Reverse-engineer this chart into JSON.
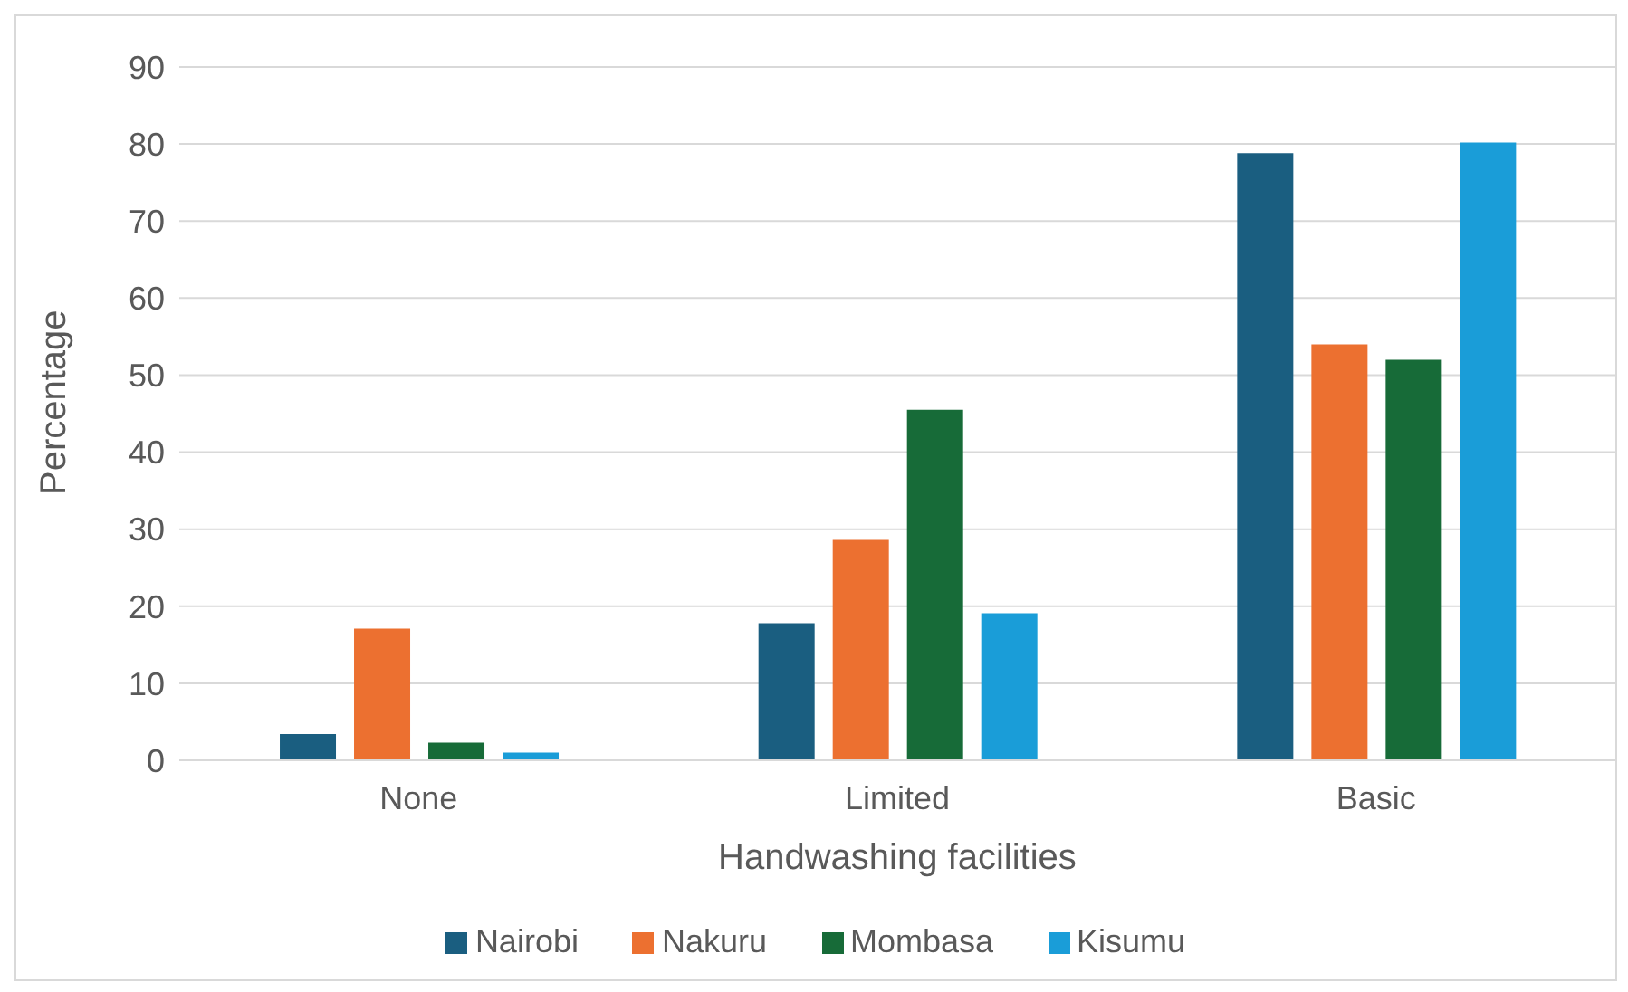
{
  "chart_data": {
    "type": "bar",
    "xlabel": "Handwashing facilities",
    "ylabel": "Percentage",
    "categories": [
      "None",
      "Limited",
      "Basic"
    ],
    "series": [
      {
        "name": "Nairobi",
        "color": "#1a5e80",
        "values": [
          3.4,
          17.8,
          78.8
        ]
      },
      {
        "name": "Nakuru",
        "color": "#ec7030",
        "values": [
          17.1,
          28.6,
          54.0
        ]
      },
      {
        "name": "Mombasa",
        "color": "#176b38",
        "values": [
          2.3,
          45.5,
          52.0
        ]
      },
      {
        "name": "Kisumu",
        "color": "#1a9dd8",
        "values": [
          1.0,
          19.1,
          80.2
        ]
      }
    ],
    "ylim": [
      0,
      90
    ],
    "yticks": [
      0,
      10,
      20,
      30,
      40,
      50,
      60,
      70,
      80,
      90
    ],
    "grid": "y",
    "legend": "bottom"
  }
}
